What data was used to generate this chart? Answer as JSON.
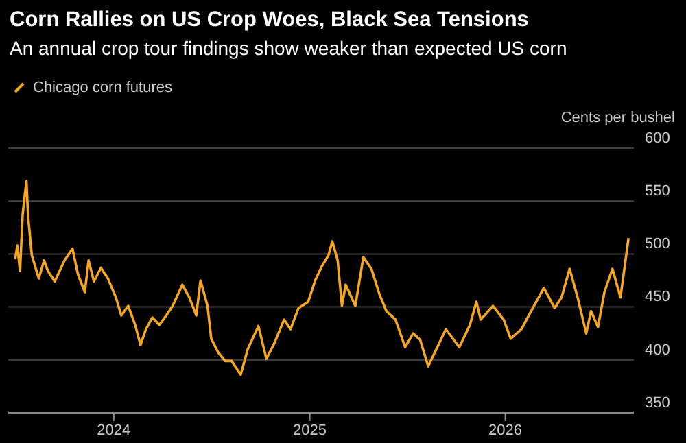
{
  "chart_data": {
    "type": "line",
    "title": "Corn Rallies on US Crop Woes, Black Sea Tensions",
    "subtitle": "An annual crop tour findings show weaker than expected US corn",
    "ylabel": "Cents per bushel",
    "x": [
      "2023-07-01",
      "2023-07-05",
      "2023-07-10",
      "2023-07-15",
      "2023-07-22",
      "2023-07-25",
      "2023-08-01",
      "2023-08-14",
      "2023-08-24",
      "2023-08-31",
      "2023-09-13",
      "2023-10-01",
      "2023-10-16",
      "2023-10-26",
      "2023-11-08",
      "2023-11-15",
      "2023-11-25",
      "2023-12-08",
      "2023-12-21",
      "2024-01-05",
      "2024-01-15",
      "2024-01-28",
      "2024-02-10",
      "2024-02-20",
      "2024-03-01",
      "2024-03-13",
      "2024-03-26",
      "2024-04-08",
      "2024-04-20",
      "2024-05-08",
      "2024-05-21",
      "2024-06-03",
      "2024-06-11",
      "2024-06-24",
      "2024-07-01",
      "2024-07-14",
      "2024-07-27",
      "2024-08-08",
      "2024-08-25",
      "2024-09-07",
      "2024-09-27",
      "2024-10-12",
      "2024-10-27",
      "2024-11-14",
      "2024-11-26",
      "2024-12-11",
      "2024-12-29",
      "2025-01-11",
      "2025-01-23",
      "2025-02-05",
      "2025-02-12",
      "2025-02-22",
      "2025-03-02",
      "2025-03-09",
      "2025-03-27",
      "2025-04-11",
      "2025-04-26",
      "2025-05-11",
      "2025-05-24",
      "2025-06-10",
      "2025-06-28",
      "2025-07-13",
      "2025-07-26",
      "2025-08-10",
      "2025-09-12",
      "2025-10-07",
      "2025-10-27",
      "2025-11-08",
      "2025-11-16",
      "2025-12-09",
      "2025-12-29",
      "2026-01-11",
      "2026-01-31",
      "2026-02-18",
      "2026-03-14",
      "2026-04-03",
      "2026-04-16",
      "2026-05-01",
      "2026-05-16",
      "2026-06-01",
      "2026-06-10",
      "2026-06-23",
      "2026-07-05",
      "2026-07-20",
      "2026-08-04",
      "2026-08-19"
    ],
    "series": [
      {
        "name": "Chicago corn futures",
        "color": "#f5a623",
        "values": [
          495,
          508,
          484,
          538,
          569,
          536,
          499,
          477,
          494,
          484,
          474,
          494,
          505,
          481,
          464,
          494,
          474,
          487,
          477,
          459,
          442,
          451,
          433,
          414,
          429,
          440,
          433,
          442,
          451,
          471,
          459,
          442,
          475,
          451,
          420,
          407,
          399,
          399,
          386,
          410,
          432,
          401,
          416,
          438,
          429,
          449,
          455,
          475,
          488,
          499,
          512,
          494,
          451,
          471,
          451,
          497,
          486,
          462,
          446,
          438,
          412,
          425,
          419,
          394,
          429,
          412,
          433,
          455,
          438,
          451,
          438,
          420,
          429,
          446,
          468,
          449,
          459,
          486,
          459,
          425,
          446,
          431,
          464,
          486,
          459,
          515
        ]
      }
    ],
    "xlim": [
      "2023-06-18",
      "2026-08-29"
    ],
    "xticks": [
      {
        "value": "2024-01-01",
        "label": "2024"
      },
      {
        "value": "2025-01-01",
        "label": "2025"
      },
      {
        "value": "2026-01-01",
        "label": "2026"
      }
    ],
    "ylim": [
      350,
      600
    ],
    "yticks": [
      350,
      400,
      450,
      500,
      550,
      600
    ],
    "grid": "y",
    "legend": "top left",
    "marker": "none",
    "line_style": "solid"
  }
}
